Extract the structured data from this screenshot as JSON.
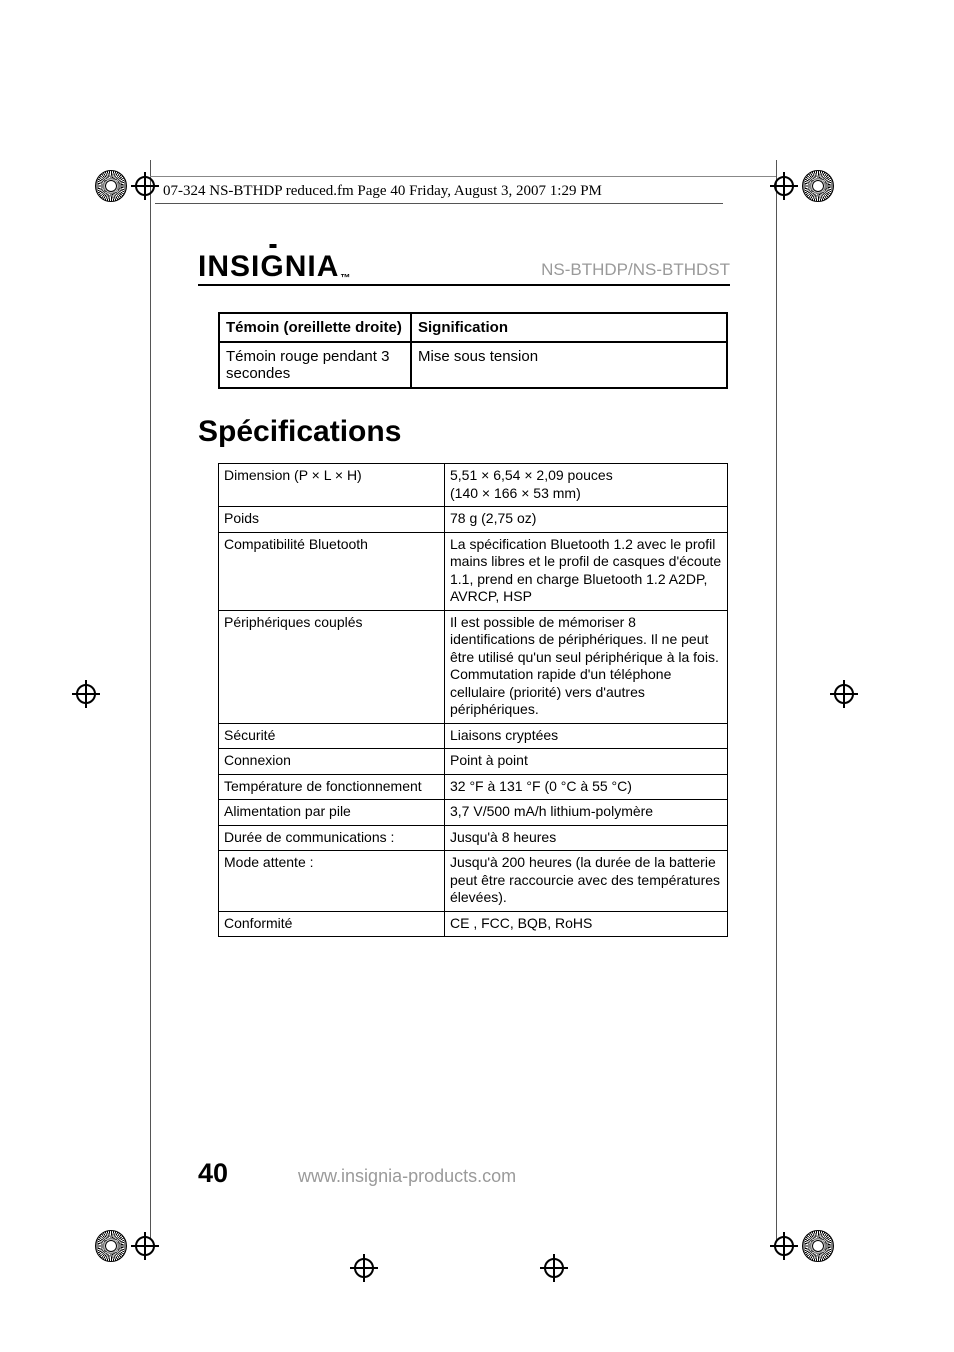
{
  "header_line": "07-324 NS-BTHDP reduced.fm  Page 40  Friday, August 3, 2007  1:29 PM",
  "brand": "INSIGNIA",
  "model": "NS-BTHDP/NS-BTHDST",
  "led_table": {
    "h1": "Témoin (oreillette droite)",
    "h2": "Signification",
    "r1c1": "Témoin rouge pendant 3 secondes",
    "r1c2": "Mise sous tension"
  },
  "spec_heading": "Spécifications",
  "specs": {
    "rows": [
      {
        "label": "Dimension (P × L × H)",
        "value": "5,51 × 6,54 × 2,09 pouces\n(140 × 166 × 53 mm)"
      },
      {
        "label": "Poids",
        "value": "78 g (2,75 oz)"
      },
      {
        "label": "Compatibilité Bluetooth",
        "value": "La spécification Bluetooth 1.2 avec le profil mains libres et le profil de casques d'écoute 1.1, prend en charge Bluetooth 1.2 A2DP, AVRCP, HSP"
      },
      {
        "label": "Périphériques couplés",
        "value": "Il est possible de mémoriser 8 identifications de périphériques. Il ne peut être utilisé qu'un seul périphérique à la fois. Commutation rapide d'un téléphone cellulaire (priorité) vers d'autres périphériques."
      },
      {
        "label": "Sécurité",
        "value": "Liaisons cryptées"
      },
      {
        "label": "Connexion",
        "value": "Point à point"
      },
      {
        "label": "Température de fonctionnement",
        "value": "32 °F à 131 °F (0 °C à 55 °C)"
      },
      {
        "label": "Alimentation par pile",
        "value": "3,7 V/500 mA/h lithium-polymère"
      },
      {
        "label": "Durée de communications :",
        "value": "Jusqu'à 8 heures"
      },
      {
        "label": "Mode attente :",
        "value": "Jusqu'à 200 heures (la durée de la batterie peut être raccourcie avec des températures élevées)."
      },
      {
        "label": "Conformité",
        "value": "CE , FCC, BQB, RoHS"
      }
    ]
  },
  "page_number": "40",
  "footer_url": "www.insignia-products.com",
  "colors": {
    "text_gray": "#9a9a9a",
    "black": "#000000",
    "line_gray": "#888888"
  },
  "fonts": {
    "body": "Arial, Helvetica, sans-serif",
    "header_serif": "Times New Roman, serif",
    "heading_size_pt": 30,
    "body_size_pt": 14
  }
}
